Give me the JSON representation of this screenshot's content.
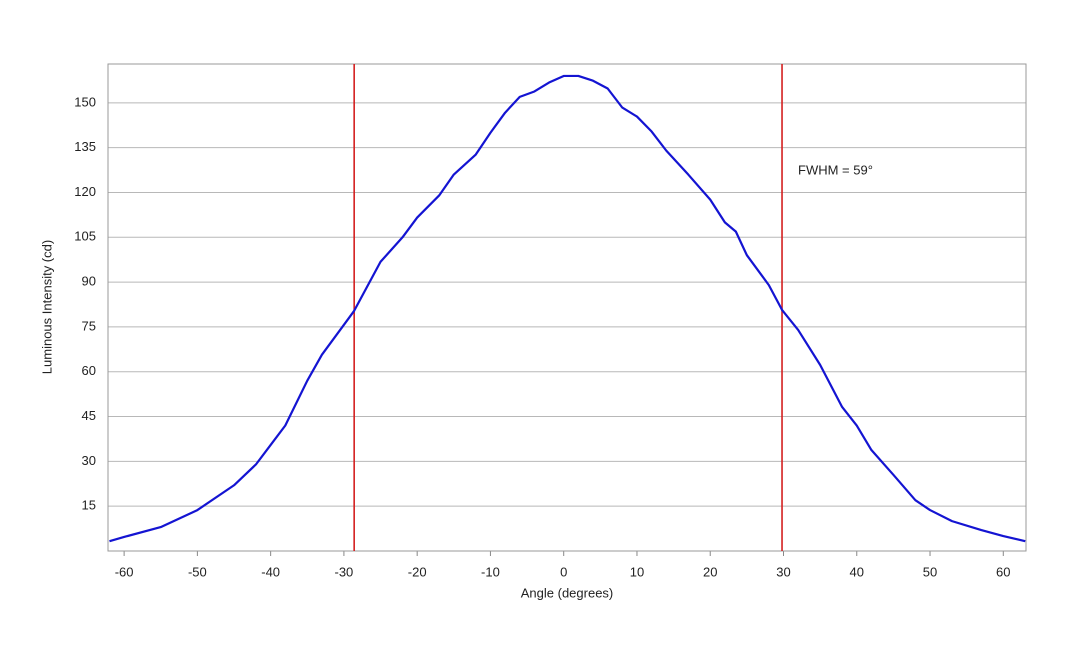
{
  "chart_data": {
    "type": "line",
    "x_label": "Angle (degrees)",
    "y_label": "Luminous Intensity (cd)",
    "annotation": "FWHM = 59°",
    "x": [
      -62,
      -60,
      -55,
      -50,
      -45,
      -42,
      -40,
      -38,
      -35,
      -33,
      -30,
      -28.6,
      -25,
      -22,
      -20,
      -17,
      -15,
      -12,
      -10,
      -8,
      -6,
      -4,
      -2,
      0,
      2,
      4,
      6,
      8,
      10,
      12,
      14,
      17,
      20,
      22,
      23.5,
      25,
      28,
      29.8,
      32,
      35,
      38,
      40,
      42,
      45,
      48,
      50,
      53,
      57,
      60,
      63
    ],
    "series": [
      {
        "name": "Luminous Intensity",
        "color": "#1414d2",
        "values": [
          3.3,
          4.7,
          8,
          13.7,
          22,
          29,
          35.5,
          42,
          57,
          65.7,
          75.7,
          80.4,
          96.8,
          105,
          111.6,
          119,
          126,
          132.7,
          140,
          146.7,
          152,
          153.8,
          156.8,
          159,
          159,
          157.4,
          154.8,
          148.4,
          145.4,
          140.4,
          134,
          126,
          117.6,
          110,
          106.9,
          99,
          89,
          80.7,
          74,
          62.3,
          48.2,
          42,
          33.8,
          25.5,
          17,
          13.7,
          10,
          7,
          5,
          3.3
        ]
      }
    ],
    "vlines": [
      -28.6,
      29.8
    ],
    "vline_color": "#d42020",
    "xlim": [
      -62.2,
      63.1
    ],
    "ylim": [
      0,
      163
    ],
    "xticks": [
      -60,
      -50,
      -40,
      -30,
      -20,
      -10,
      0,
      10,
      20,
      30,
      40,
      50,
      60
    ],
    "yticks": [
      15,
      30,
      45,
      60,
      75,
      90,
      105,
      120,
      135,
      150
    ],
    "grid": true
  }
}
